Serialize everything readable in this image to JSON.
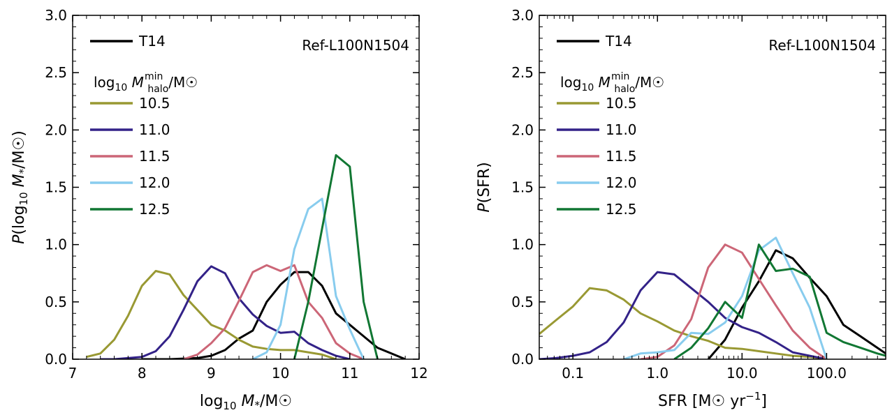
{
  "colors": {
    "T14": "#000000",
    "10.5": "#999933",
    "11.0": "#332288",
    "11.5": "#CC6677",
    "12.0": "#88CCEE",
    "12.5": "#117733"
  },
  "chart_data": [
    {
      "type": "line",
      "xlabel": "log10 M*/M☉",
      "ylabel": "P(log10 M*/M☉)",
      "annotation": "Ref-L100N1504",
      "legend_title": "log10 Mhalo^min/M☉",
      "legend_placement": "top-left",
      "xlim": [
        7,
        12
      ],
      "ylim": [
        0,
        3.0
      ],
      "x_scale": "linear",
      "x_ticks": [
        7,
        8,
        9,
        10,
        11,
        12
      ],
      "x_tick_labels": [
        "7",
        "8",
        "9",
        "10",
        "11",
        "12"
      ],
      "y_ticks": [
        0,
        0.5,
        1.0,
        1.5,
        2.0,
        2.5,
        3.0
      ],
      "y_tick_labels": [
        "0.0",
        "0.5",
        "1.0",
        "1.5",
        "2.0",
        "2.5",
        "3.0"
      ],
      "series": [
        {
          "name": "T14",
          "key": "T14",
          "x": [
            8.0,
            8.4,
            8.8,
            9.0,
            9.2,
            9.4,
            9.6,
            9.8,
            10.0,
            10.2,
            10.4,
            10.6,
            10.8,
            11.0,
            11.2,
            11.4,
            11.6,
            11.8
          ],
          "y": [
            0.0,
            0.0,
            0.01,
            0.03,
            0.08,
            0.18,
            0.25,
            0.5,
            0.65,
            0.76,
            0.76,
            0.64,
            0.4,
            0.3,
            0.2,
            0.1,
            0.05,
            0.0
          ]
        },
        {
          "name": "10.5",
          "key": "10.5",
          "x": [
            7.2,
            7.4,
            7.6,
            7.8,
            8.0,
            8.2,
            8.4,
            8.6,
            8.8,
            9.0,
            9.2,
            9.4,
            9.6,
            9.8,
            10.0,
            10.2,
            10.4,
            10.6,
            10.8
          ],
          "y": [
            0.02,
            0.05,
            0.17,
            0.38,
            0.64,
            0.77,
            0.74,
            0.56,
            0.43,
            0.3,
            0.25,
            0.17,
            0.11,
            0.09,
            0.08,
            0.08,
            0.06,
            0.04,
            0.0
          ]
        },
        {
          "name": "11.0",
          "key": "11.0",
          "x": [
            7.4,
            7.6,
            7.8,
            8.0,
            8.2,
            8.4,
            8.6,
            8.8,
            9.0,
            9.2,
            9.4,
            9.6,
            9.8,
            10.0,
            10.2,
            10.4,
            10.6,
            10.8,
            11.0
          ],
          "y": [
            0.0,
            0.0,
            0.01,
            0.02,
            0.07,
            0.2,
            0.43,
            0.68,
            0.81,
            0.75,
            0.53,
            0.39,
            0.29,
            0.23,
            0.24,
            0.14,
            0.08,
            0.03,
            0.0
          ]
        },
        {
          "name": "11.5",
          "key": "11.5",
          "x": [
            8.6,
            8.8,
            9.0,
            9.2,
            9.4,
            9.6,
            9.8,
            10.0,
            10.2,
            10.4,
            10.6,
            10.8,
            11.0,
            11.2
          ],
          "y": [
            0.0,
            0.04,
            0.14,
            0.27,
            0.51,
            0.76,
            0.82,
            0.77,
            0.82,
            0.5,
            0.36,
            0.14,
            0.05,
            0.0
          ]
        },
        {
          "name": "12.0",
          "key": "12.0",
          "x": [
            9.6,
            9.8,
            10.0,
            10.2,
            10.4,
            10.6,
            10.8,
            11.0,
            11.2
          ],
          "y": [
            0.0,
            0.06,
            0.3,
            0.96,
            1.31,
            1.4,
            0.55,
            0.26,
            0.0
          ]
        },
        {
          "name": "12.5",
          "key": "12.5",
          "x": [
            10.2,
            10.4,
            10.6,
            10.8,
            11.0,
            11.2,
            11.4
          ],
          "y": [
            0.0,
            0.5,
            1.14,
            1.78,
            1.68,
            0.5,
            0.0
          ]
        }
      ]
    },
    {
      "type": "line",
      "xlabel": "SFR [M☉ yr−1]",
      "ylabel": "P(SFR)",
      "annotation": "Ref-L100N1504",
      "legend_title": "log10 Mhalo^min/M☉",
      "legend_placement": "top-left",
      "xlim": [
        0.04,
        500
      ],
      "ylim": [
        0,
        3.0
      ],
      "x_scale": "log",
      "x_ticks": [
        0.1,
        1.0,
        10.0,
        100.0
      ],
      "x_tick_labels": [
        "0.1",
        "1.0",
        "10.0",
        "100.0"
      ],
      "y_ticks": [
        0,
        0.5,
        1.0,
        1.5,
        2.0,
        2.5,
        3.0
      ],
      "y_tick_labels": [
        "0.0",
        "0.5",
        "1.0",
        "1.5",
        "2.0",
        "2.5",
        "3.0"
      ],
      "series": [
        {
          "name": "T14",
          "key": "T14",
          "x": [
            4.0,
            6.3,
            10.0,
            15.8,
            25.1,
            39.8,
            63.1,
            100,
            158,
            251,
            398,
            500
          ],
          "y": [
            0.0,
            0.17,
            0.45,
            0.68,
            0.95,
            0.88,
            0.71,
            0.55,
            0.3,
            0.2,
            0.1,
            0.05
          ]
        },
        {
          "name": "10.5",
          "key": "10.5",
          "x": [
            0.04,
            0.063,
            0.1,
            0.158,
            0.251,
            0.398,
            0.631,
            1.0,
            1.58,
            2.51,
            3.98,
            6.31,
            10.0,
            15.8,
            25.1,
            39.8,
            63.1,
            100
          ],
          "y": [
            0.22,
            0.34,
            0.46,
            0.62,
            0.6,
            0.52,
            0.4,
            0.33,
            0.25,
            0.2,
            0.16,
            0.1,
            0.09,
            0.07,
            0.05,
            0.03,
            0.02,
            0.0
          ]
        },
        {
          "name": "11.0",
          "key": "11.0",
          "x": [
            0.04,
            0.063,
            0.1,
            0.158,
            0.251,
            0.398,
            0.631,
            1.0,
            1.58,
            2.51,
            3.98,
            6.31,
            10.0,
            15.8,
            25.1,
            39.8,
            63.1,
            100
          ],
          "y": [
            0.0,
            0.01,
            0.03,
            0.06,
            0.15,
            0.32,
            0.6,
            0.76,
            0.74,
            0.62,
            0.5,
            0.36,
            0.28,
            0.23,
            0.15,
            0.06,
            0.03,
            0.0
          ]
        },
        {
          "name": "11.5",
          "key": "11.5",
          "x": [
            0.631,
            1.0,
            1.58,
            2.51,
            3.98,
            6.31,
            10.0,
            15.8,
            25.1,
            39.8,
            63.1,
            100
          ],
          "y": [
            0.0,
            0.02,
            0.12,
            0.35,
            0.8,
            1.0,
            0.93,
            0.7,
            0.47,
            0.25,
            0.1,
            0.0
          ]
        },
        {
          "name": "12.0",
          "key": "12.0",
          "x": [
            0.4,
            0.631,
            1.0,
            1.58,
            2.51,
            3.98,
            6.31,
            10.0,
            15.8,
            25.1,
            39.8,
            63.1,
            100
          ],
          "y": [
            0.0,
            0.05,
            0.06,
            0.08,
            0.23,
            0.22,
            0.32,
            0.55,
            0.95,
            1.06,
            0.75,
            0.45,
            0.0
          ]
        },
        {
          "name": "12.5",
          "key": "12.5",
          "x": [
            1.58,
            2.51,
            3.98,
            6.31,
            10.0,
            15.8,
            25.1,
            39.8,
            63.1,
            100,
            158,
            251,
            398,
            500
          ],
          "y": [
            0.0,
            0.1,
            0.27,
            0.5,
            0.36,
            1.0,
            0.77,
            0.79,
            0.72,
            0.23,
            0.15,
            0.1,
            0.05,
            0.03
          ]
        }
      ]
    }
  ]
}
